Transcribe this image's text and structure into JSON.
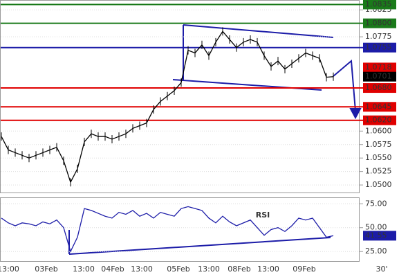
{
  "chart_data": [
    {
      "type": "price-line",
      "name": "price",
      "series": [
        {
          "color": "#000000",
          "values": [
            1.059,
            1.0565,
            1.056,
            1.0555,
            1.055,
            1.0555,
            1.056,
            1.0565,
            1.057,
            1.0545,
            1.0505,
            1.053,
            1.058,
            1.0595,
            1.059,
            1.059,
            1.0585,
            1.059,
            1.0595,
            1.0605,
            1.061,
            1.0615,
            1.064,
            1.0655,
            1.0665,
            1.0675,
            1.069,
            1.075,
            1.0745,
            1.076,
            1.074,
            1.0765,
            1.0785,
            1.077,
            1.0755,
            1.0765,
            1.077,
            1.0765,
            1.074,
            1.072,
            1.073,
            1.0715,
            1.0725,
            1.0735,
            1.0745,
            1.074,
            1.0735,
            1.07,
            1.0701
          ]
        }
      ],
      "ylim": [
        1.0486,
        1.0842
      ],
      "yticks": [
        {
          "value": 1.0825,
          "label": "1.0825"
        },
        {
          "value": 1.0775,
          "label": "1.0775"
        },
        {
          "value": 1.06,
          "label": "1.0600"
        },
        {
          "value": 1.0575,
          "label": "1.0575"
        },
        {
          "value": 1.055,
          "label": "1.0550"
        },
        {
          "value": 1.0525,
          "label": "1.0525"
        },
        {
          "value": 1.05,
          "label": "1.0500"
        }
      ],
      "levels": [
        {
          "value": 1.0835,
          "label": "1.0835",
          "color": "#1a7a1a"
        },
        {
          "value": 1.08,
          "label": "1.0800",
          "color": "#1a7a1a"
        },
        {
          "value": 1.0755,
          "label": "1.0755",
          "color": "#1c1ca8"
        },
        {
          "value": 1.068,
          "label": "1.0680",
          "color": "#e00000"
        },
        {
          "value": 1.0645,
          "label": "1.0645",
          "color": "#e00000"
        },
        {
          "value": 1.062,
          "label": "1.0620",
          "color": "#e00000"
        }
      ],
      "price_boxes": [
        {
          "value": 1.0718,
          "label": "1.0718",
          "color": "#e00000"
        },
        {
          "value": 1.0701,
          "label": "1.0701",
          "color": "#000000"
        }
      ]
    },
    {
      "type": "rsi-line",
      "title": "RSI",
      "series": [
        {
          "color": "#1c1ca8",
          "values": [
            60,
            55,
            52,
            55,
            54,
            52,
            56,
            54,
            58,
            50,
            25,
            40,
            70,
            68,
            65,
            62,
            60,
            66,
            64,
            68,
            62,
            65,
            60,
            66,
            64,
            62,
            70,
            72,
            70,
            68,
            60,
            55,
            62,
            56,
            52,
            55,
            58,
            50,
            42,
            48,
            50,
            46,
            52,
            60,
            58,
            60,
            50,
            40,
            41.55
          ]
        }
      ],
      "ylim": [
        15,
        81
      ],
      "yticks": [
        {
          "value": 75,
          "label": "75.00"
        },
        {
          "value": 50,
          "label": "50.00"
        },
        {
          "value": 25,
          "label": "25.00"
        }
      ],
      "price_boxes": [
        {
          "value": 41.55,
          "label": "41.55",
          "color": "#1c1ca8"
        }
      ]
    },
    {
      "type": "time-axis",
      "labels": [
        "13:00",
        "03Feb",
        "13:00",
        "04Feb",
        "13:00",
        "05Feb",
        "13:00",
        "08Feb",
        "13:00",
        "09Feb",
        "30'"
      ]
    }
  ]
}
